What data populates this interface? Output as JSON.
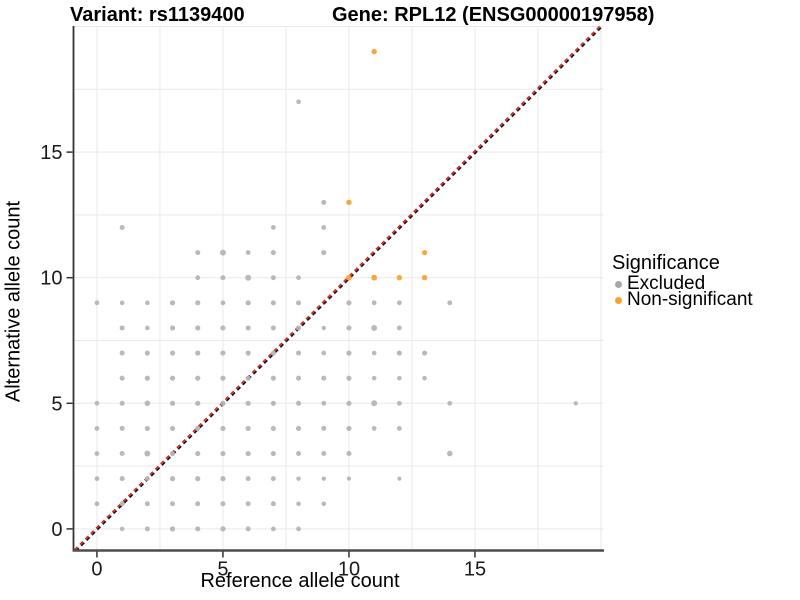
{
  "titles": {
    "variant": "Variant: rs1139400",
    "gene": "Gene: RPL12 (ENSG00000197958)"
  },
  "chart_data": {
    "type": "scatter",
    "xlabel": "Reference allele count",
    "ylabel": "Alternative allele count",
    "xlim": [
      -0.93,
      20.12
    ],
    "ylim": [
      -0.86,
      20.02
    ],
    "xticks": [
      0,
      5,
      10,
      15
    ],
    "yticks": [
      0,
      5,
      10,
      15
    ],
    "grid": {
      "step": 2.5,
      "on": true,
      "color": "#e9e9e9"
    },
    "identity_line": {
      "type": "y=x",
      "style": "dashed",
      "colors": {
        "black": "#161616",
        "red": "#de2420"
      }
    },
    "legend": {
      "title": "Significance",
      "position": "right",
      "entries": [
        {
          "label": "Excluded",
          "color": "#a6a6a6"
        },
        {
          "label": "Non-significant",
          "color": "#f9a22b"
        }
      ]
    },
    "series": [
      {
        "name": "Excluded",
        "color": "#b5b5b5",
        "points": [
          [
            8,
            17,
            2.3
          ],
          [
            9,
            13,
            2.5
          ],
          [
            1,
            12,
            2.5
          ],
          [
            7,
            12,
            2.4
          ],
          [
            9,
            12,
            2.4
          ],
          [
            4,
            11,
            2.5
          ],
          [
            5,
            11,
            3.0
          ],
          [
            6,
            11,
            2.4
          ],
          [
            7,
            11,
            2.6
          ],
          [
            9,
            11,
            2.6
          ],
          [
            4,
            10,
            2.4
          ],
          [
            5,
            10,
            2.5
          ],
          [
            6,
            10,
            3.0
          ],
          [
            7,
            10,
            2.5
          ],
          [
            8,
            10,
            2.4
          ],
          [
            0,
            9,
            2.4
          ],
          [
            1,
            9,
            2.3
          ],
          [
            2,
            9,
            2.3
          ],
          [
            3,
            9,
            2.6
          ],
          [
            4,
            9,
            2.6
          ],
          [
            5,
            9,
            2.4
          ],
          [
            6,
            9,
            2.6
          ],
          [
            7,
            9,
            2.5
          ],
          [
            8,
            9,
            2.5
          ],
          [
            10,
            9,
            2.6
          ],
          [
            11,
            9,
            2.4
          ],
          [
            12,
            9,
            2.4
          ],
          [
            14,
            9,
            2.4
          ],
          [
            1,
            8,
            2.5
          ],
          [
            2,
            8,
            2.3
          ],
          [
            3,
            8,
            2.6
          ],
          [
            4,
            8,
            2.6
          ],
          [
            5,
            8,
            2.6
          ],
          [
            6,
            8,
            2.5
          ],
          [
            7,
            8,
            2.5
          ],
          [
            8,
            8,
            2.5
          ],
          [
            9,
            8,
            2.2
          ],
          [
            10,
            8,
            2.6
          ],
          [
            11,
            8,
            3.0
          ],
          [
            12,
            8,
            2.4
          ],
          [
            1,
            7,
            2.5
          ],
          [
            2,
            7,
            2.6
          ],
          [
            3,
            7,
            2.6
          ],
          [
            4,
            7,
            2.6
          ],
          [
            5,
            7,
            2.6
          ],
          [
            6,
            7,
            2.6
          ],
          [
            7,
            7,
            2.6
          ],
          [
            8,
            7,
            2.5
          ],
          [
            9,
            7,
            2.4
          ],
          [
            10,
            7,
            2.6
          ],
          [
            11,
            7,
            2.3
          ],
          [
            12,
            7,
            2.6
          ],
          [
            13,
            7,
            2.6
          ],
          [
            1,
            6,
            2.5
          ],
          [
            2,
            6,
            2.6
          ],
          [
            3,
            6,
            2.6
          ],
          [
            4,
            6,
            2.6
          ],
          [
            5,
            6,
            2.6
          ],
          [
            6,
            6,
            2.6
          ],
          [
            7,
            6,
            2.6
          ],
          [
            8,
            6,
            2.5
          ],
          [
            9,
            6,
            2.5
          ],
          [
            10,
            6,
            2.6
          ],
          [
            11,
            6,
            2.3
          ],
          [
            12,
            6,
            2.3
          ],
          [
            13,
            6,
            2.3
          ],
          [
            0,
            5,
            2.4
          ],
          [
            1,
            5,
            2.5
          ],
          [
            2,
            5,
            2.8
          ],
          [
            3,
            5,
            2.6
          ],
          [
            4,
            5,
            2.6
          ],
          [
            5,
            5,
            2.6
          ],
          [
            6,
            5,
            2.6
          ],
          [
            7,
            5,
            2.6
          ],
          [
            8,
            5,
            2.5
          ],
          [
            9,
            5,
            2.4
          ],
          [
            10,
            5,
            2.6
          ],
          [
            11,
            5,
            3.0
          ],
          [
            12,
            5,
            2.4
          ],
          [
            14,
            5,
            2.4
          ],
          [
            19,
            5,
            2.2
          ],
          [
            0,
            4,
            2.4
          ],
          [
            1,
            4,
            2.5
          ],
          [
            2,
            4,
            2.6
          ],
          [
            3,
            4,
            2.6
          ],
          [
            4,
            4,
            2.6
          ],
          [
            5,
            4,
            2.6
          ],
          [
            6,
            4,
            2.6
          ],
          [
            7,
            4,
            2.6
          ],
          [
            8,
            4,
            2.6
          ],
          [
            9,
            4,
            2.5
          ],
          [
            10,
            4,
            2.6
          ],
          [
            11,
            4,
            2.4
          ],
          [
            12,
            4,
            2.4
          ],
          [
            0,
            3,
            2.4
          ],
          [
            1,
            3,
            2.5
          ],
          [
            2,
            3,
            3.0
          ],
          [
            3,
            3,
            2.6
          ],
          [
            4,
            3,
            2.6
          ],
          [
            5,
            3,
            2.6
          ],
          [
            6,
            3,
            2.6
          ],
          [
            7,
            3,
            2.6
          ],
          [
            8,
            3,
            2.5
          ],
          [
            9,
            3,
            2.5
          ],
          [
            10,
            3,
            2.5
          ],
          [
            14,
            3,
            2.8
          ],
          [
            0,
            2,
            2.4
          ],
          [
            1,
            2,
            2.5
          ],
          [
            2,
            2,
            2.5
          ],
          [
            3,
            2,
            2.6
          ],
          [
            4,
            2,
            2.6
          ],
          [
            5,
            2,
            2.6
          ],
          [
            6,
            2,
            2.5
          ],
          [
            7,
            2,
            2.5
          ],
          [
            8,
            2,
            2.2
          ],
          [
            9,
            2,
            2.2
          ],
          [
            10,
            2,
            2.1
          ],
          [
            12,
            2,
            2.1
          ],
          [
            0,
            1,
            2.4
          ],
          [
            1,
            1,
            2.5
          ],
          [
            2,
            1,
            2.5
          ],
          [
            3,
            1,
            2.5
          ],
          [
            4,
            1,
            2.5
          ],
          [
            5,
            1,
            2.5
          ],
          [
            6,
            1,
            2.5
          ],
          [
            7,
            1,
            2.5
          ],
          [
            8,
            1,
            2.3
          ],
          [
            9,
            1,
            2.3
          ],
          [
            1,
            0,
            2.3
          ],
          [
            2,
            0,
            2.5
          ],
          [
            3,
            0,
            2.6
          ],
          [
            4,
            0,
            2.5
          ],
          [
            5,
            0,
            2.6
          ],
          [
            6,
            0,
            2.5
          ],
          [
            7,
            0,
            2.4
          ],
          [
            8,
            0,
            2.4
          ]
        ]
      },
      {
        "name": "Non-significant",
        "color": "#f9a232",
        "points": [
          [
            11,
            19,
            2.7
          ],
          [
            10,
            13,
            2.7
          ],
          [
            13,
            11,
            2.6
          ],
          [
            10,
            10,
            2.8
          ],
          [
            11,
            10,
            2.9
          ],
          [
            12,
            10,
            2.7
          ],
          [
            13,
            10,
            2.7
          ]
        ]
      }
    ]
  }
}
